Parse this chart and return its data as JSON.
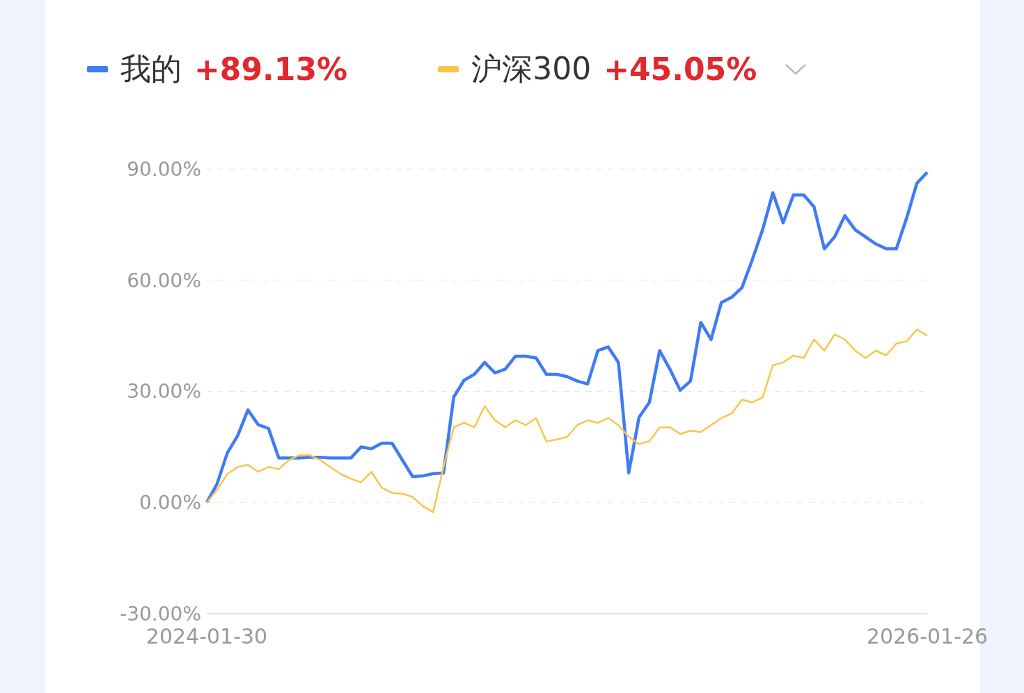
{
  "chart_data": {
    "type": "line",
    "categories": [
      "2024-01-30",
      null,
      null,
      null,
      null,
      null,
      null,
      null,
      null,
      null,
      null,
      null,
      null,
      null,
      null,
      null,
      null,
      null,
      null,
      null,
      null,
      null,
      null,
      null,
      null,
      null,
      null,
      null,
      null,
      null,
      null,
      null,
      null,
      null,
      null,
      null,
      null,
      null,
      null,
      null,
      null,
      null,
      null,
      null,
      null,
      null,
      null,
      null,
      null,
      null,
      null,
      null,
      null,
      null,
      null,
      null,
      null,
      null,
      null,
      null,
      null,
      null,
      null,
      null,
      null,
      null,
      null,
      null,
      null,
      null,
      "2026-01-26"
    ],
    "series": [
      {
        "name": "我的",
        "color": "#3f7cf4",
        "values": [
          0,
          5,
          13.4,
          18,
          25,
          21,
          20,
          12,
          12,
          12,
          12.2,
          12.2,
          12,
          12,
          12,
          15,
          14.5,
          16,
          16,
          11.5,
          7,
          7.2,
          7.8,
          8,
          28.5,
          33,
          34.6,
          37.8,
          35,
          36,
          39.5,
          39.5,
          39,
          34.6,
          34.6,
          34,
          32.8,
          32,
          41,
          42,
          37.8,
          8,
          23,
          27,
          41,
          36,
          30.3,
          32.8,
          48.6,
          44,
          54,
          55.4,
          58,
          65.5,
          73.6,
          83.6,
          75.5,
          83,
          83,
          79.8,
          68.5,
          71.7,
          77.4,
          73.6,
          71.7,
          69.8,
          68.5,
          68.5,
          76.8,
          86.2,
          89.13
        ]
      },
      {
        "name": "沪深300",
        "color": "#fbc54c",
        "values": [
          0,
          3.4,
          7.7,
          9.6,
          10.2,
          8.3,
          9.6,
          9,
          11.5,
          12.8,
          12.8,
          11.5,
          9.6,
          7.7,
          6.4,
          5.5,
          8.3,
          4,
          2.6,
          2.4,
          1.5,
          -1,
          -2.6,
          9.6,
          20.3,
          21.5,
          20.3,
          26,
          22.2,
          20.3,
          22.2,
          20.9,
          22.8,
          16.5,
          17,
          17.7,
          20.9,
          22.2,
          21.5,
          22.8,
          20.9,
          17.7,
          15.8,
          16.5,
          20.3,
          20.3,
          18.5,
          19.4,
          19,
          20.9,
          22.8,
          24,
          27.8,
          27,
          28.4,
          37,
          37.8,
          39.7,
          39,
          44,
          41,
          45.4,
          44,
          41,
          39,
          41,
          39.7,
          42.9,
          43.5,
          46.7,
          45.05
        ]
      }
    ],
    "annotations": [
      "+89.13%",
      "+45.05%"
    ],
    "ylim": [
      -30,
      90
    ],
    "yticks": [
      {
        "value": -30,
        "label": "-30.00%"
      },
      {
        "value": 0,
        "label": "0.00%"
      },
      {
        "value": 30,
        "label": "30.00%"
      },
      {
        "value": 60,
        "label": "60.00%"
      },
      {
        "value": 90,
        "label": "90.00%"
      }
    ],
    "grid": "y",
    "legend": "top left"
  }
}
